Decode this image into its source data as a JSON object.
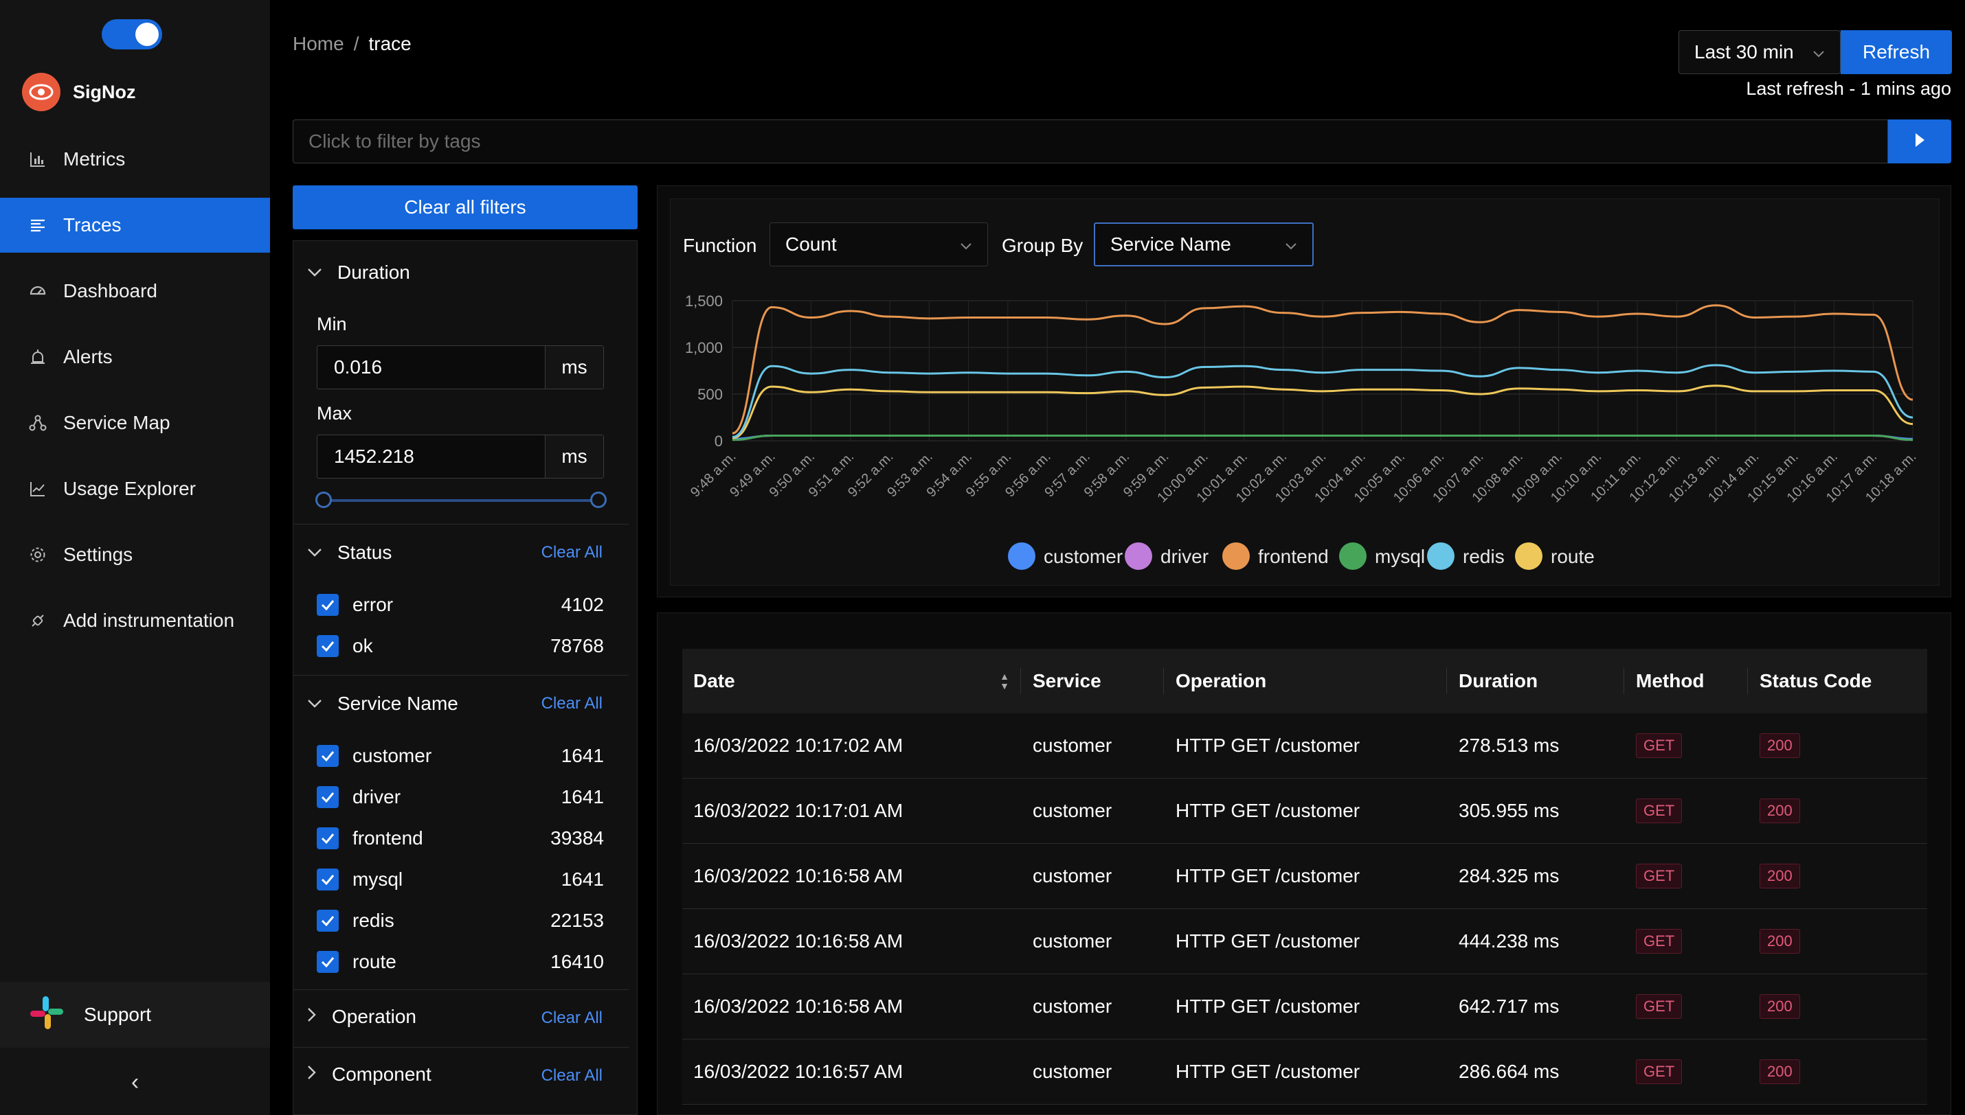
{
  "sidebar": {
    "brand": "SigNoz",
    "items": [
      {
        "label": "Metrics",
        "icon": "bar-chart-icon"
      },
      {
        "label": "Traces",
        "icon": "list-icon"
      },
      {
        "label": "Dashboard",
        "icon": "dashboard-icon"
      },
      {
        "label": "Alerts",
        "icon": "alarm-icon"
      },
      {
        "label": "Service Map",
        "icon": "deployment-unit-icon"
      },
      {
        "label": "Usage Explorer",
        "icon": "line-chart-icon"
      },
      {
        "label": "Settings",
        "icon": "gear-icon"
      },
      {
        "label": "Add instrumentation",
        "icon": "api-icon"
      }
    ],
    "active_index": 1,
    "support_label": "Support",
    "collapse_glyph": "‹"
  },
  "header": {
    "breadcrumb": {
      "home": "Home",
      "sep": "/",
      "current": "trace"
    },
    "time_range": "Last 30 min",
    "refresh_label": "Refresh",
    "last_refresh": "Last refresh - 1 mins ago"
  },
  "filter_bar": {
    "placeholder": "Click to filter by tags"
  },
  "filters": {
    "clear_all_label": "Clear all filters",
    "clear_label": "Clear All",
    "duration": {
      "title": "Duration",
      "min_label": "Min",
      "min_value": "0.016",
      "max_label": "Max",
      "max_value": "1452.218",
      "unit": "ms"
    },
    "status": {
      "title": "Status",
      "items": [
        {
          "label": "error",
          "count": "4102"
        },
        {
          "label": "ok",
          "count": "78768"
        }
      ]
    },
    "service_name": {
      "title": "Service Name",
      "items": [
        {
          "label": "customer",
          "count": "1641"
        },
        {
          "label": "driver",
          "count": "1641"
        },
        {
          "label": "frontend",
          "count": "39384"
        },
        {
          "label": "mysql",
          "count": "1641"
        },
        {
          "label": "redis",
          "count": "22153"
        },
        {
          "label": "route",
          "count": "16410"
        }
      ]
    },
    "operation": {
      "title": "Operation"
    },
    "component": {
      "title": "Component"
    }
  },
  "controls": {
    "function_label": "Function",
    "function_value": "Count",
    "group_by_label": "Group By",
    "group_by_value": "Service Name"
  },
  "chart_data": {
    "type": "line",
    "title": "",
    "xlabel": "",
    "ylabel": "",
    "ylim": [
      0,
      1500
    ],
    "yticks": [
      "0",
      "500",
      "1,000",
      "1,500"
    ],
    "grid": true,
    "legend_position": "bottom",
    "x": [
      "9:48 a.m.",
      "9:49 a.m.",
      "9:50 a.m.",
      "9:51 a.m.",
      "9:52 a.m.",
      "9:53 a.m.",
      "9:54 a.m.",
      "9:55 a.m.",
      "9:56 a.m.",
      "9:57 a.m.",
      "9:58 a.m.",
      "9:59 a.m.",
      "10:00 a.m.",
      "10:01 a.m.",
      "10:02 a.m.",
      "10:03 a.m.",
      "10:04 a.m.",
      "10:05 a.m.",
      "10:06 a.m.",
      "10:07 a.m.",
      "10:08 a.m.",
      "10:09 a.m.",
      "10:10 a.m.",
      "10:11 a.m.",
      "10:12 a.m.",
      "10:13 a.m.",
      "10:14 a.m.",
      "10:15 a.m.",
      "10:16 a.m.",
      "10:17 a.m.",
      "10:18 a.m."
    ],
    "series": [
      {
        "name": "customer",
        "color": "#4a8cf7",
        "values": [
          20,
          55,
          55,
          55,
          55,
          55,
          55,
          55,
          55,
          55,
          55,
          55,
          55,
          55,
          55,
          55,
          55,
          55,
          55,
          55,
          55,
          55,
          55,
          55,
          55,
          55,
          55,
          55,
          55,
          55,
          20
        ]
      },
      {
        "name": "driver",
        "color": "#c07ddb",
        "values": [
          10,
          55,
          55,
          55,
          55,
          55,
          55,
          55,
          55,
          55,
          55,
          55,
          55,
          55,
          55,
          55,
          55,
          55,
          55,
          55,
          55,
          55,
          55,
          55,
          55,
          55,
          55,
          55,
          55,
          55,
          10
        ]
      },
      {
        "name": "frontend",
        "color": "#e8964f",
        "values": [
          80,
          1430,
          1320,
          1390,
          1330,
          1310,
          1320,
          1320,
          1320,
          1300,
          1340,
          1250,
          1420,
          1440,
          1370,
          1330,
          1370,
          1380,
          1360,
          1270,
          1400,
          1380,
          1330,
          1360,
          1330,
          1450,
          1320,
          1330,
          1360,
          1350,
          440
        ]
      },
      {
        "name": "mysql",
        "color": "#47a55a",
        "values": [
          10,
          55,
          55,
          55,
          55,
          55,
          55,
          55,
          55,
          55,
          55,
          55,
          55,
          55,
          55,
          55,
          55,
          55,
          55,
          55,
          55,
          55,
          55,
          55,
          55,
          55,
          55,
          55,
          55,
          55,
          10
        ]
      },
      {
        "name": "redis",
        "color": "#69c6e6",
        "values": [
          40,
          800,
          720,
          760,
          730,
          720,
          730,
          720,
          720,
          700,
          740,
          680,
          790,
          800,
          760,
          730,
          760,
          760,
          750,
          690,
          780,
          760,
          730,
          750,
          730,
          810,
          730,
          740,
          750,
          740,
          250
        ]
      },
      {
        "name": "route",
        "color": "#eec85a",
        "values": [
          30,
          580,
          520,
          550,
          530,
          520,
          520,
          520,
          520,
          510,
          530,
          490,
          570,
          580,
          550,
          530,
          550,
          550,
          540,
          500,
          560,
          550,
          530,
          540,
          530,
          590,
          530,
          530,
          540,
          540,
          180
        ]
      }
    ]
  },
  "table": {
    "headers": [
      "Date",
      "Service",
      "Operation",
      "Duration",
      "Method",
      "Status Code"
    ],
    "rows": [
      {
        "date": "16/03/2022 10:17:02 AM",
        "service": "customer",
        "operation": "HTTP GET /customer",
        "duration": "278.513 ms",
        "method": "GET",
        "status": "200"
      },
      {
        "date": "16/03/2022 10:17:01 AM",
        "service": "customer",
        "operation": "HTTP GET /customer",
        "duration": "305.955 ms",
        "method": "GET",
        "status": "200"
      },
      {
        "date": "16/03/2022 10:16:58 AM",
        "service": "customer",
        "operation": "HTTP GET /customer",
        "duration": "284.325 ms",
        "method": "GET",
        "status": "200"
      },
      {
        "date": "16/03/2022 10:16:58 AM",
        "service": "customer",
        "operation": "HTTP GET /customer",
        "duration": "444.238 ms",
        "method": "GET",
        "status": "200"
      },
      {
        "date": "16/03/2022 10:16:58 AM",
        "service": "customer",
        "operation": "HTTP GET /customer",
        "duration": "642.717 ms",
        "method": "GET",
        "status": "200"
      },
      {
        "date": "16/03/2022 10:16:57 AM",
        "service": "customer",
        "operation": "HTTP GET /customer",
        "duration": "286.664 ms",
        "method": "GET",
        "status": "200"
      }
    ]
  }
}
